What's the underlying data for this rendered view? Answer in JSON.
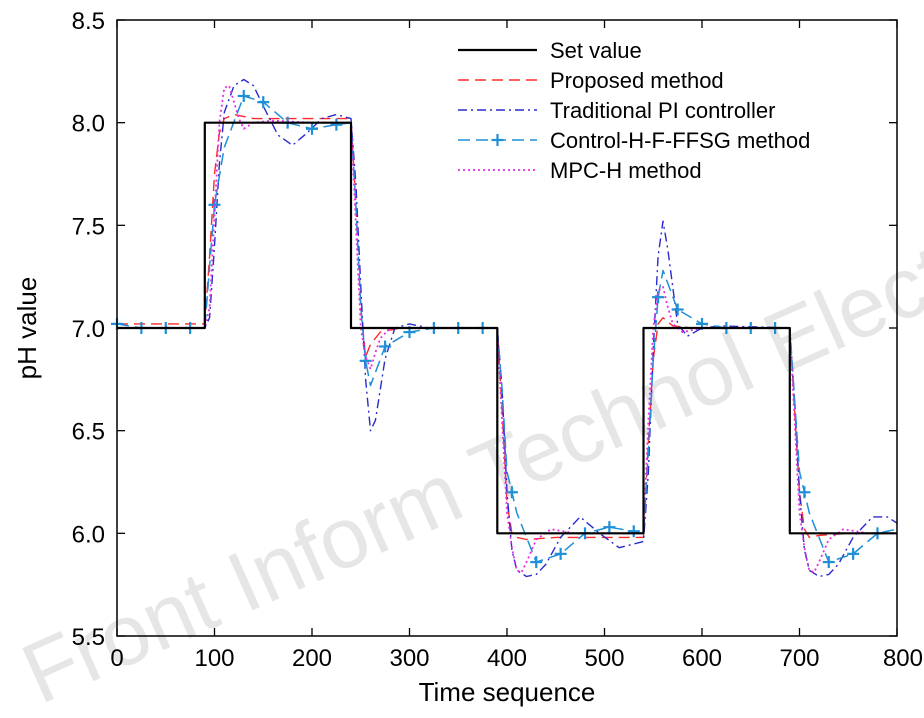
{
  "watermark": "Front Inform Technol Electron Eng",
  "chart_data": {
    "type": "line",
    "title": "",
    "xlabel": "Time sequence",
    "ylabel": "pH value",
    "xlim": [
      0,
      800
    ],
    "ylim": [
      5.5,
      8.5
    ],
    "xticks": [
      0,
      100,
      200,
      300,
      400,
      500,
      600,
      700,
      800
    ],
    "yticks": [
      5.5,
      6.0,
      6.5,
      7.0,
      7.5,
      8.0,
      8.5
    ],
    "xtick_labels": [
      "0",
      "100",
      "200",
      "300",
      "400",
      "500",
      "600",
      "700",
      "800"
    ],
    "ytick_labels": [
      "5.5",
      "6.0",
      "6.5",
      "7.0",
      "7.5",
      "8.0",
      "8.5"
    ],
    "grid": false,
    "legend_position": "top-right",
    "series": [
      {
        "name": "Set value",
        "color": "#000000",
        "style": "solid",
        "x": [
          0,
          90,
          90,
          240,
          240,
          390,
          390,
          540,
          540,
          690,
          690,
          800
        ],
        "y": [
          7.0,
          7.0,
          8.0,
          8.0,
          7.0,
          7.0,
          6.0,
          6.0,
          7.0,
          7.0,
          6.0,
          6.0
        ]
      },
      {
        "name": "Proposed method",
        "color": "#ff2a2a",
        "style": "dashed",
        "x": [
          0,
          90,
          95,
          100,
          105,
          110,
          120,
          140,
          200,
          240,
          245,
          250,
          255,
          260,
          270,
          290,
          390,
          395,
          400,
          405,
          410,
          420,
          450,
          540,
          545,
          550,
          555,
          560,
          570,
          590,
          690,
          695,
          700,
          705,
          710,
          720,
          750,
          800
        ],
        "y": [
          7.02,
          7.02,
          7.35,
          7.75,
          7.95,
          8.02,
          8.04,
          8.02,
          8.02,
          8.02,
          7.6,
          7.1,
          6.86,
          6.92,
          6.98,
          7.0,
          7.0,
          6.6,
          6.15,
          6.0,
          5.98,
          5.97,
          5.98,
          5.98,
          6.45,
          6.85,
          7.02,
          7.05,
          7.01,
          7.0,
          7.0,
          6.6,
          6.2,
          6.02,
          5.98,
          5.99,
          6.0,
          6.0
        ]
      },
      {
        "name": "Traditional PI controller",
        "color": "#2a2acc",
        "style": "dashdot",
        "x": [
          0,
          90,
          95,
          100,
          105,
          110,
          120,
          130,
          140,
          150,
          165,
          180,
          195,
          210,
          225,
          240,
          245,
          250,
          255,
          260,
          265,
          275,
          285,
          300,
          320,
          390,
          395,
          400,
          405,
          410,
          420,
          430,
          440,
          455,
          475,
          495,
          515,
          540,
          545,
          550,
          555,
          560,
          565,
          575,
          585,
          600,
          620,
          690,
          695,
          700,
          705,
          710,
          720,
          730,
          740,
          755,
          775,
          790,
          800
        ],
        "y": [
          7.0,
          7.0,
          7.05,
          7.4,
          7.8,
          8.05,
          8.18,
          8.21,
          8.18,
          8.08,
          7.94,
          7.89,
          7.95,
          8.02,
          8.04,
          8.02,
          7.7,
          7.2,
          6.75,
          6.5,
          6.55,
          6.85,
          7.0,
          7.02,
          7.0,
          7.0,
          6.7,
          6.2,
          5.92,
          5.82,
          5.79,
          5.8,
          5.85,
          5.98,
          6.08,
          6.0,
          5.93,
          5.96,
          6.3,
          6.9,
          7.35,
          7.52,
          7.38,
          7.02,
          6.96,
          7.0,
          7.01,
          7.0,
          6.65,
          6.2,
          5.92,
          5.82,
          5.79,
          5.8,
          5.85,
          5.98,
          6.08,
          6.08,
          6.05
        ]
      },
      {
        "name": "Control-H-F-FFSG method",
        "color": "#1f8fd6",
        "style": "dashed-marker",
        "x": [
          0,
          25,
          50,
          75,
          90,
          95,
          100,
          110,
          130,
          150,
          175,
          200,
          225,
          240,
          245,
          250,
          255,
          260,
          275,
          300,
          325,
          350,
          375,
          390,
          395,
          400,
          410,
          430,
          455,
          480,
          505,
          530,
          540,
          545,
          550,
          555,
          560,
          575,
          600,
          625,
          650,
          675,
          690,
          695,
          700,
          710,
          730,
          755,
          780,
          800
        ],
        "y": [
          7.02,
          7.0,
          7.0,
          7.0,
          7.0,
          7.3,
          7.6,
          7.88,
          8.13,
          8.1,
          8.0,
          7.97,
          7.99,
          8.0,
          7.6,
          7.1,
          6.84,
          6.72,
          6.91,
          6.98,
          7.0,
          7.0,
          7.0,
          7.0,
          6.7,
          6.3,
          6.1,
          5.86,
          5.9,
          6.0,
          6.03,
          6.01,
          6.0,
          6.4,
          6.85,
          7.15,
          7.28,
          7.09,
          7.02,
          7.0,
          7.0,
          7.0,
          7.0,
          6.65,
          6.3,
          6.1,
          5.86,
          5.9,
          6.0,
          6.02
        ],
        "markers_x": [
          0,
          25,
          50,
          75,
          100,
          130,
          150,
          175,
          200,
          225,
          255,
          275,
          300,
          325,
          350,
          375,
          405,
          430,
          455,
          480,
          505,
          530,
          555,
          575,
          600,
          625,
          650,
          675,
          705,
          730,
          755,
          780
        ]
      },
      {
        "name": "MPC-H method",
        "color": "#e62ee6",
        "style": "dotted",
        "x": [
          0,
          90,
          95,
          100,
          105,
          110,
          115,
          120,
          125,
          130,
          140,
          160,
          200,
          240,
          245,
          250,
          255,
          260,
          265,
          270,
          280,
          300,
          390,
          395,
          400,
          405,
          410,
          415,
          420,
          430,
          445,
          470,
          540,
          545,
          550,
          555,
          560,
          565,
          570,
          580,
          600,
          690,
          695,
          700,
          705,
          710,
          715,
          720,
          730,
          745,
          770,
          800
        ],
        "y": [
          7.0,
          7.0,
          7.1,
          7.55,
          8.0,
          8.17,
          8.18,
          8.1,
          8.02,
          7.97,
          8.0,
          8.01,
          8.0,
          8.0,
          7.5,
          7.0,
          6.86,
          6.8,
          6.88,
          6.95,
          7.0,
          7.0,
          7.0,
          6.55,
          6.1,
          5.93,
          5.82,
          5.81,
          5.86,
          5.97,
          6.02,
          6.0,
          6.0,
          6.55,
          7.0,
          7.18,
          7.2,
          7.1,
          7.02,
          6.98,
          7.0,
          7.0,
          6.55,
          6.1,
          5.93,
          5.82,
          5.81,
          5.86,
          5.97,
          6.02,
          6.0,
          6.0
        ]
      }
    ]
  }
}
